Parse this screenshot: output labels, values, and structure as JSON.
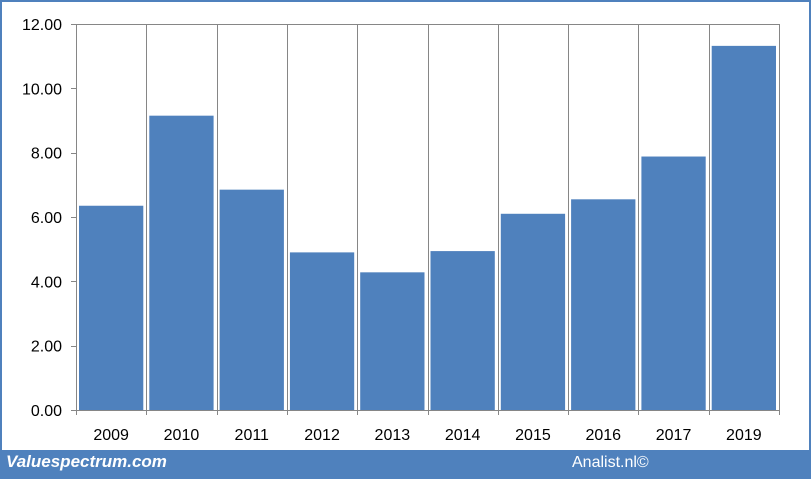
{
  "chart_data": {
    "type": "bar",
    "categories": [
      "2009",
      "2010",
      "2011",
      "2012",
      "2013",
      "2014",
      "2015",
      "2016",
      "2017",
      "2019"
    ],
    "values": [
      6.35,
      9.15,
      6.85,
      4.9,
      4.28,
      4.94,
      6.1,
      6.55,
      7.88,
      11.32
    ],
    "ylim": [
      0,
      12
    ],
    "yticks": [
      "0.00",
      "2.00",
      "4.00",
      "6.00",
      "8.00",
      "10.00",
      "12.00"
    ],
    "grid": "vertical",
    "bar_color": "#4f81bd",
    "border_color": "#4f81bd"
  },
  "footer": {
    "left": "Valuespectrum.com",
    "right": "Analist.nl©"
  }
}
